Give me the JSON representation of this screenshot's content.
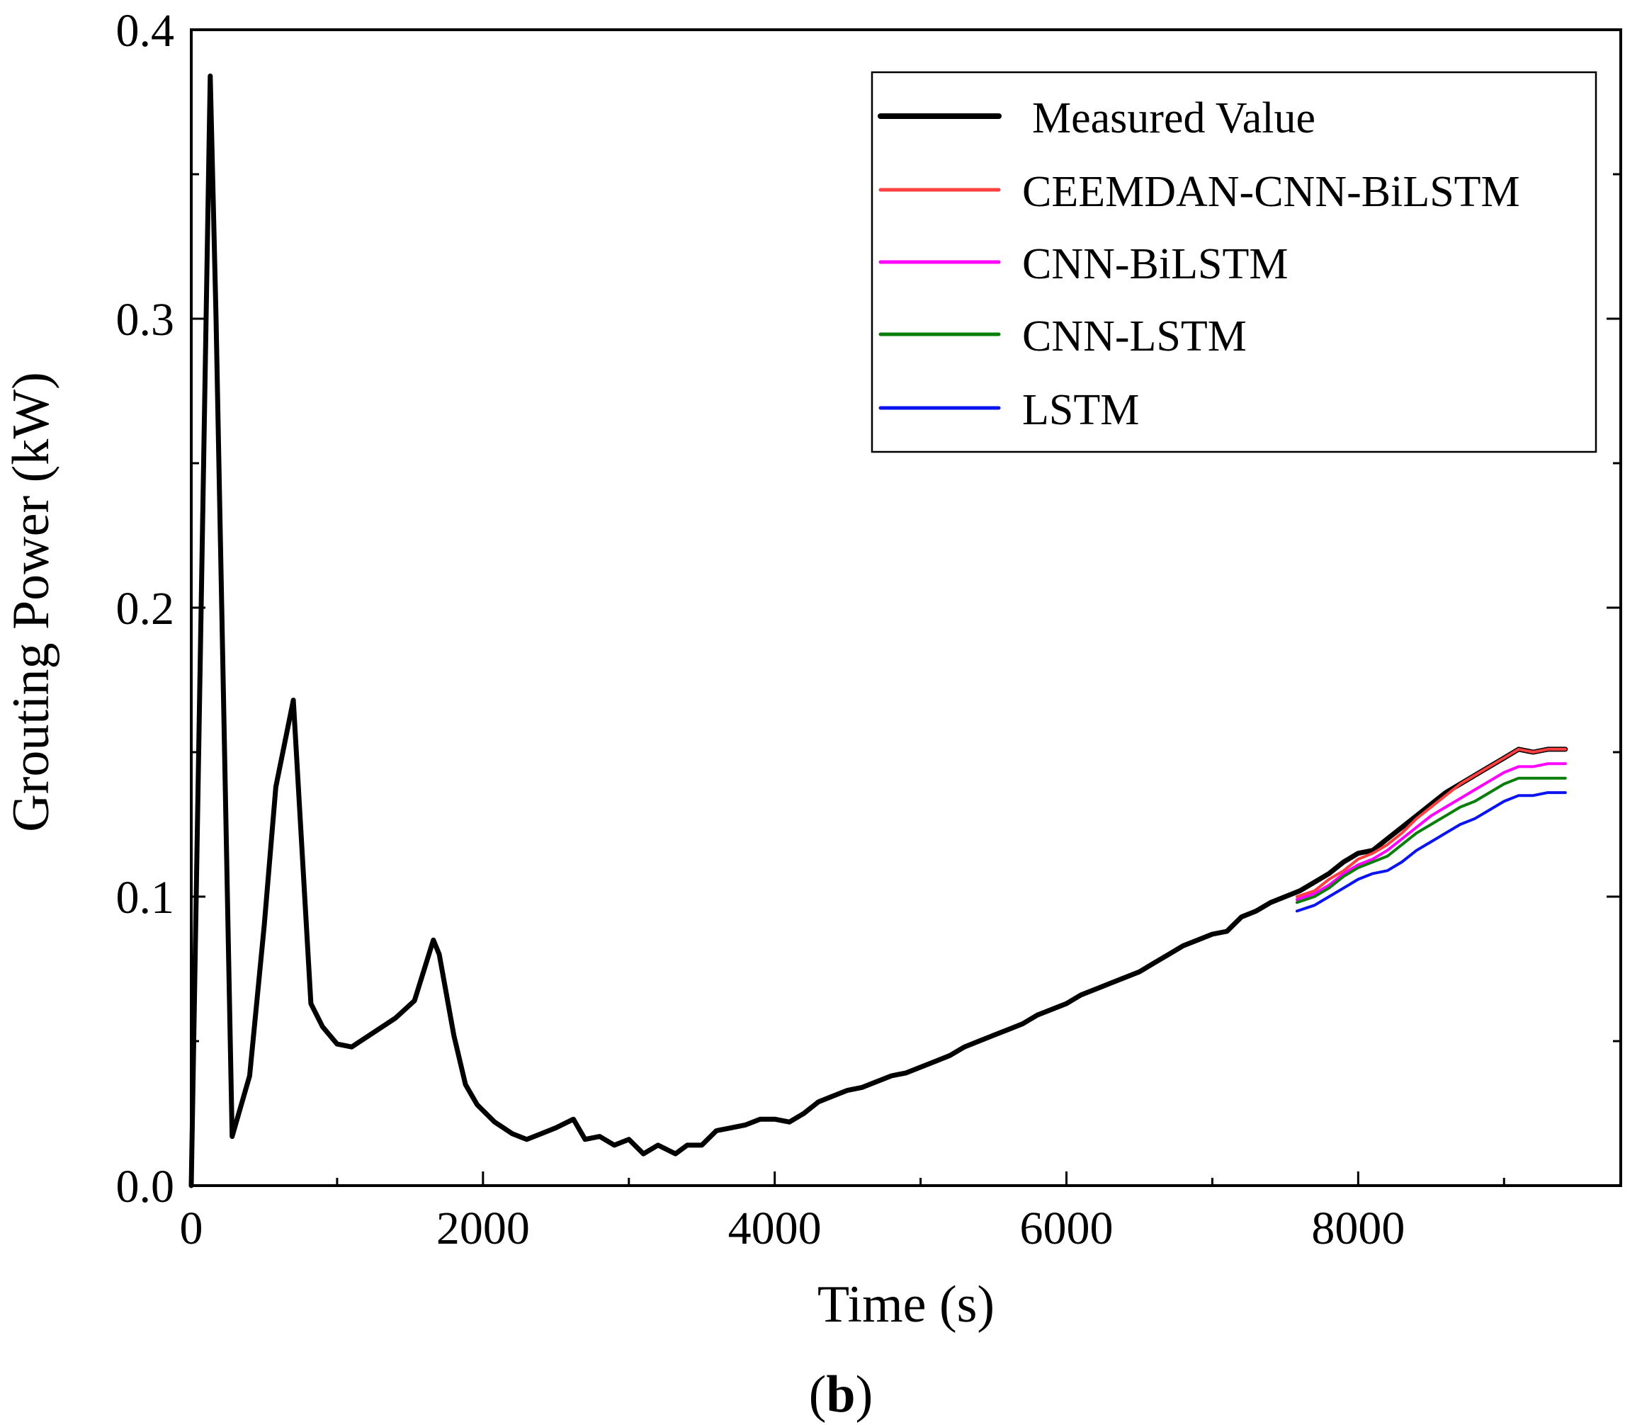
{
  "chart_data": {
    "type": "line",
    "title": "",
    "xlabel": "Time (s)",
    "ylabel": "Grouting Power (kW)",
    "xlim": [
      0,
      9800
    ],
    "ylim": [
      0,
      0.4
    ],
    "xticks": [
      0,
      2000,
      4000,
      6000,
      8000
    ],
    "xtick_labels": [
      "0",
      "2000",
      "4000",
      "6000",
      "8000"
    ],
    "yticks": [
      0.0,
      0.1,
      0.2,
      0.3,
      0.4
    ],
    "ytick_labels": [
      "0.0",
      "0.1",
      "0.2",
      "0.3",
      "0.4"
    ],
    "grid": false,
    "legend_position": "top-right",
    "caption_letter": "b",
    "caption_open": "(",
    "caption_close": ")",
    "series": [
      {
        "name": "Measured Value",
        "color": "#000000",
        "x": [
          0,
          130,
          170,
          280,
          400,
          500,
          580,
          700,
          820,
          900,
          1000,
          1100,
          1250,
          1400,
          1530,
          1660,
          1700,
          1800,
          1880,
          1960,
          2080,
          2200,
          2300,
          2400,
          2500,
          2620,
          2700,
          2800,
          2900,
          3000,
          3100,
          3200,
          3320,
          3400,
          3500,
          3600,
          3700,
          3800,
          3900,
          4000,
          4100,
          4200,
          4300,
          4400,
          4500,
          4600,
          4700,
          4800,
          4900,
          5000,
          5100,
          5200,
          5300,
          5400,
          5500,
          5600,
          5700,
          5800,
          5900,
          6000,
          6100,
          6200,
          6300,
          6400,
          6500,
          6600,
          6700,
          6800,
          6900,
          7000,
          7100,
          7200,
          7300,
          7400,
          7500,
          7600,
          7700,
          7800,
          7900,
          8000,
          8100,
          8200,
          8300,
          8400,
          8500,
          8600,
          8700,
          8800,
          8900,
          9000,
          9100,
          9200,
          9300,
          9420
        ],
        "y": [
          0.0,
          0.384,
          0.3,
          0.017,
          0.038,
          0.09,
          0.138,
          0.168,
          0.063,
          0.055,
          0.049,
          0.048,
          0.053,
          0.058,
          0.064,
          0.085,
          0.08,
          0.052,
          0.035,
          0.028,
          0.022,
          0.018,
          0.016,
          0.018,
          0.02,
          0.023,
          0.016,
          0.017,
          0.014,
          0.016,
          0.011,
          0.014,
          0.011,
          0.014,
          0.014,
          0.019,
          0.02,
          0.021,
          0.023,
          0.023,
          0.022,
          0.025,
          0.029,
          0.031,
          0.033,
          0.034,
          0.036,
          0.038,
          0.039,
          0.041,
          0.043,
          0.045,
          0.048,
          0.05,
          0.052,
          0.054,
          0.056,
          0.059,
          0.061,
          0.063,
          0.066,
          0.068,
          0.07,
          0.072,
          0.074,
          0.077,
          0.08,
          0.083,
          0.085,
          0.087,
          0.088,
          0.093,
          0.095,
          0.098,
          0.1,
          0.102,
          0.105,
          0.108,
          0.112,
          0.115,
          0.116,
          0.12,
          0.124,
          0.128,
          0.132,
          0.136,
          0.139,
          0.142,
          0.145,
          0.148,
          0.151,
          0.15,
          0.151,
          0.151
        ]
      },
      {
        "name": "CEEMDAN-CNN-BiLSTM",
        "color": "#ff4040",
        "x": [
          7580,
          7700,
          7800,
          7900,
          8000,
          8100,
          8200,
          8300,
          8400,
          8500,
          8600,
          8700,
          8800,
          8900,
          9000,
          9100,
          9200,
          9300,
          9420
        ],
        "y": [
          0.1,
          0.102,
          0.106,
          0.109,
          0.113,
          0.115,
          0.118,
          0.122,
          0.127,
          0.131,
          0.135,
          0.139,
          0.142,
          0.145,
          0.148,
          0.151,
          0.15,
          0.151,
          0.151
        ]
      },
      {
        "name": "CNN-BiLSTM",
        "color": "#ff00ff",
        "x": [
          7580,
          7700,
          7800,
          7900,
          8000,
          8100,
          8200,
          8300,
          8400,
          8500,
          8600,
          8700,
          8800,
          8900,
          9000,
          9100,
          9200,
          9300,
          9420
        ],
        "y": [
          0.099,
          0.101,
          0.104,
          0.108,
          0.111,
          0.113,
          0.116,
          0.12,
          0.124,
          0.128,
          0.131,
          0.134,
          0.137,
          0.14,
          0.143,
          0.145,
          0.145,
          0.146,
          0.146
        ]
      },
      {
        "name": "CNN-LSTM",
        "color": "#0a7d0a",
        "x": [
          7580,
          7700,
          7800,
          7900,
          8000,
          8100,
          8200,
          8300,
          8400,
          8500,
          8600,
          8700,
          8800,
          8900,
          9000,
          9100,
          9200,
          9300,
          9420
        ],
        "y": [
          0.098,
          0.1,
          0.103,
          0.107,
          0.11,
          0.112,
          0.114,
          0.118,
          0.122,
          0.125,
          0.128,
          0.131,
          0.133,
          0.136,
          0.139,
          0.141,
          0.141,
          0.141,
          0.141
        ]
      },
      {
        "name": "LSTM",
        "color": "#0a14f0",
        "x": [
          7580,
          7700,
          7800,
          7900,
          8000,
          8100,
          8200,
          8300,
          8400,
          8500,
          8600,
          8700,
          8800,
          8900,
          9000,
          9100,
          9200,
          9300,
          9420
        ],
        "y": [
          0.095,
          0.097,
          0.1,
          0.103,
          0.106,
          0.108,
          0.109,
          0.112,
          0.116,
          0.119,
          0.122,
          0.125,
          0.127,
          0.13,
          0.133,
          0.135,
          0.135,
          0.136,
          0.136
        ]
      }
    ]
  }
}
